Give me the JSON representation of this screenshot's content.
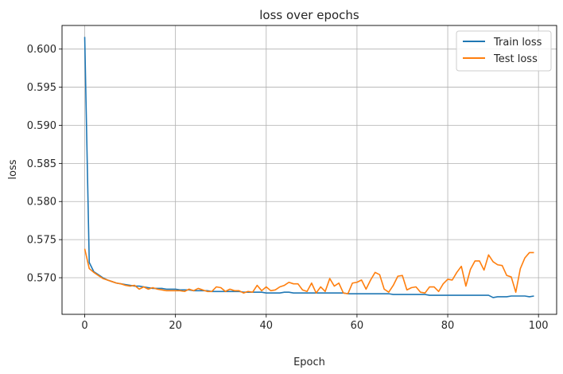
{
  "chart_data": {
    "type": "line",
    "title": "loss over epochs",
    "xlabel": "Epoch",
    "ylabel": "loss",
    "xlim": [
      -5,
      104
    ],
    "ylim": [
      0.5652,
      0.6031
    ],
    "xticks": [
      0,
      20,
      40,
      60,
      80,
      100
    ],
    "yticks": [
      0.57,
      0.575,
      0.58,
      0.585,
      0.59,
      0.595,
      0.6
    ],
    "xtick_labels": [
      "0",
      "20",
      "40",
      "60",
      "80",
      "100"
    ],
    "ytick_labels": [
      "0.570",
      "0.575",
      "0.580",
      "0.585",
      "0.590",
      "0.595",
      "0.600"
    ],
    "grid": true,
    "legend_position": "top-right",
    "series": [
      {
        "name": "Train loss",
        "color": "#1f77b4",
        "values": [
          0.6016,
          0.572,
          0.5708,
          0.5704,
          0.57,
          0.5697,
          0.5695,
          0.5693,
          0.5692,
          0.5691,
          0.569,
          0.5689,
          0.5689,
          0.5688,
          0.5687,
          0.5686,
          0.5686,
          0.5686,
          0.5685,
          0.5685,
          0.5685,
          0.5684,
          0.5684,
          0.5684,
          0.5683,
          0.5683,
          0.5683,
          0.5683,
          0.5682,
          0.5682,
          0.5682,
          0.5682,
          0.5682,
          0.5682,
          0.5682,
          0.5681,
          0.5681,
          0.5681,
          0.5681,
          0.5681,
          0.568,
          0.568,
          0.568,
          0.568,
          0.5681,
          0.5681,
          0.568,
          0.568,
          0.568,
          0.568,
          0.568,
          0.568,
          0.568,
          0.568,
          0.568,
          0.568,
          0.568,
          0.568,
          0.5679,
          0.5679,
          0.5679,
          0.5679,
          0.5679,
          0.5679,
          0.5679,
          0.5679,
          0.5679,
          0.5679,
          0.5678,
          0.5678,
          0.5678,
          0.5678,
          0.5678,
          0.5678,
          0.5678,
          0.5678,
          0.5677,
          0.5677,
          0.5677,
          0.5677,
          0.5677,
          0.5677,
          0.5677,
          0.5677,
          0.5677,
          0.5677,
          0.5677,
          0.5677,
          0.5677,
          0.5677,
          0.5674,
          0.5675,
          0.5675,
          0.5675,
          0.5676,
          0.5676,
          0.5676,
          0.5676,
          0.5675,
          0.5676
        ]
      },
      {
        "name": "Test loss",
        "color": "#ff7f0e",
        "values": [
          0.5738,
          0.5712,
          0.5707,
          0.5703,
          0.5699,
          0.5697,
          0.5695,
          0.5693,
          0.5692,
          0.569,
          0.5689,
          0.569,
          0.5685,
          0.5688,
          0.5685,
          0.5687,
          0.5685,
          0.5684,
          0.5683,
          0.5683,
          0.5683,
          0.5683,
          0.5682,
          0.5685,
          0.5683,
          0.5686,
          0.5684,
          0.5682,
          0.5682,
          0.5688,
          0.5687,
          0.5682,
          0.5685,
          0.5683,
          0.5683,
          0.568,
          0.5682,
          0.5681,
          0.569,
          0.5683,
          0.5688,
          0.5683,
          0.5684,
          0.5688,
          0.569,
          0.5694,
          0.5692,
          0.5692,
          0.5684,
          0.5682,
          0.5693,
          0.568,
          0.5688,
          0.5682,
          0.5699,
          0.5689,
          0.5693,
          0.568,
          0.5679,
          0.5693,
          0.5694,
          0.5697,
          0.5685,
          0.5697,
          0.5707,
          0.5704,
          0.5685,
          0.5681,
          0.569,
          0.5702,
          0.5703,
          0.5684,
          0.5687,
          0.5688,
          0.5681,
          0.568,
          0.5688,
          0.5688,
          0.5682,
          0.5692,
          0.5698,
          0.5697,
          0.5707,
          0.5715,
          0.5689,
          0.5711,
          0.5722,
          0.5722,
          0.571,
          0.573,
          0.5721,
          0.5717,
          0.5716,
          0.5703,
          0.5701,
          0.5681,
          0.5712,
          0.5726,
          0.5733,
          0.5733
        ]
      }
    ]
  }
}
